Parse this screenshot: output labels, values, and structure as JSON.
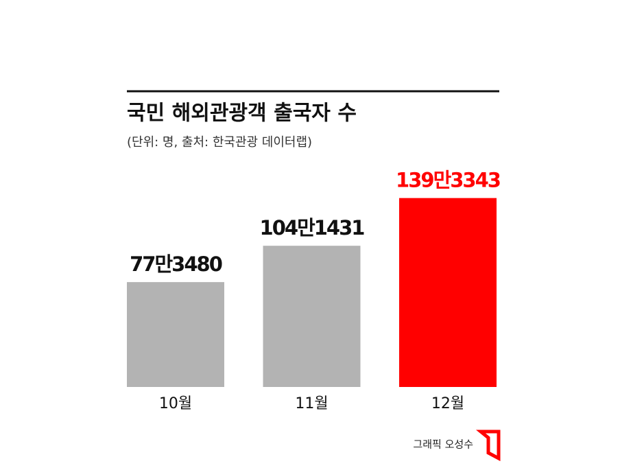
{
  "chart_data": {
    "type": "bar",
    "title": "국민 해외관광객 출국자 수",
    "subtitle": "(단위: 명, 출처: 한국관광 데이터랩)",
    "categories": [
      "10월",
      "11월",
      "12월"
    ],
    "values": [
      773480,
      1041431,
      1393343
    ],
    "value_labels": [
      "77만3480",
      "104만1431",
      "139만3343"
    ],
    "color": "#b3b3b3",
    "colors": [
      "#b3b3b3",
      "#b3b3b3",
      "#ff0000"
    ],
    "credit": "그래픽 오성수"
  }
}
